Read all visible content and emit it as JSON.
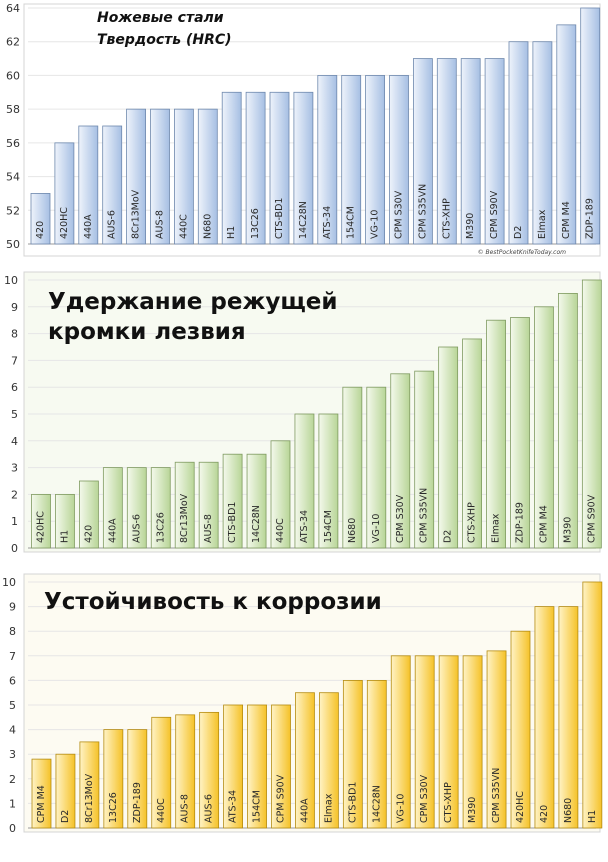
{
  "chart_data": [
    {
      "type": "bar",
      "title": "Ножевые стали",
      "subtitle": "Твердость (HRC)",
      "source": "© BestPocketKnifeToday.com",
      "ylim": [
        50,
        64
      ],
      "yticks": [
        50,
        52,
        54,
        56,
        58,
        60,
        62,
        64
      ],
      "categories": [
        "420",
        "420HC",
        "440A",
        "AUS-6",
        "8Cr13MoV",
        "AUS-8",
        "440C",
        "N680",
        "H1",
        "13C26",
        "CTS-BD1",
        "14C28N",
        "ATS-34",
        "154CM",
        "VG-10",
        "CPM S30V",
        "CPM S35VN",
        "CTS-XHP",
        "M390",
        "CPM S90V",
        "D2",
        "Elmax",
        "CPM M4",
        "ZDP-189"
      ],
      "values": [
        53,
        56,
        57,
        57,
        58,
        58,
        58,
        58,
        59,
        59,
        59,
        59,
        60,
        60,
        60,
        60,
        61,
        61,
        61,
        61,
        62,
        62,
        63,
        64
      ],
      "colors": {
        "fill_light": "#eef3fb",
        "fill_dark": "#a6bfe3",
        "edge": "#6e88ad",
        "background": "#ffffff"
      }
    },
    {
      "type": "bar",
      "title": "Удержание режущей",
      "title_line2": "кромки лезвия",
      "ylim": [
        0,
        10
      ],
      "yticks": [
        0,
        1,
        2,
        3,
        4,
        5,
        6,
        7,
        8,
        9,
        10
      ],
      "categories": [
        "420HC",
        "H1",
        "420",
        "440A",
        "AUS-6",
        "13C26",
        "8Cr13MoV",
        "AUS-8",
        "CTS-BD1",
        "14C28N",
        "440C",
        "ATS-34",
        "154CM",
        "N680",
        "VG-10",
        "CPM S30V",
        "CPM S35VN",
        "D2",
        "CTS-XHP",
        "Elmax",
        "ZDP-189",
        "CPM M4",
        "M390",
        "CPM S90V"
      ],
      "values": [
        2,
        2,
        2.5,
        3,
        3,
        3,
        3.2,
        3.2,
        3.5,
        3.5,
        4,
        5,
        5,
        6,
        6,
        6.5,
        6.6,
        7.5,
        7.8,
        8.5,
        8.6,
        9,
        9.5,
        10
      ],
      "colors": {
        "fill_light": "#f4f9ec",
        "fill_dark": "#b8d597",
        "edge": "#7f9a60",
        "background": "#f7faf1"
      }
    },
    {
      "type": "bar",
      "title": "Устойчивость к коррозии",
      "ylim": [
        0,
        10
      ],
      "yticks": [
        0,
        1,
        2,
        3,
        4,
        5,
        6,
        7,
        8,
        9,
        10
      ],
      "categories": [
        "CPM M4",
        "D2",
        "8Cr13MoV",
        "13C26",
        "ZDP-189",
        "440C",
        "AUS-8",
        "AUS-6",
        "ATS-34",
        "154CM",
        "CPM S90V",
        "440A",
        "Elmax",
        "CTS-BD1",
        "14C28N",
        "VG-10",
        "CPM S30V",
        "CTS-XHP",
        "M390",
        "CPM S35VN",
        "420HC",
        "420",
        "N680",
        "H1"
      ],
      "values": [
        2.8,
        3,
        3.5,
        4,
        4,
        4.5,
        4.6,
        4.7,
        5,
        5,
        5,
        5.5,
        5.5,
        6,
        6,
        7,
        7,
        7,
        7,
        7.2,
        8,
        9,
        9,
        10
      ],
      "colors": {
        "fill_light": "#fff3c6",
        "fill_dark": "#f5c228",
        "edge": "#b58c12",
        "background": "#fdfbf2"
      }
    }
  ]
}
